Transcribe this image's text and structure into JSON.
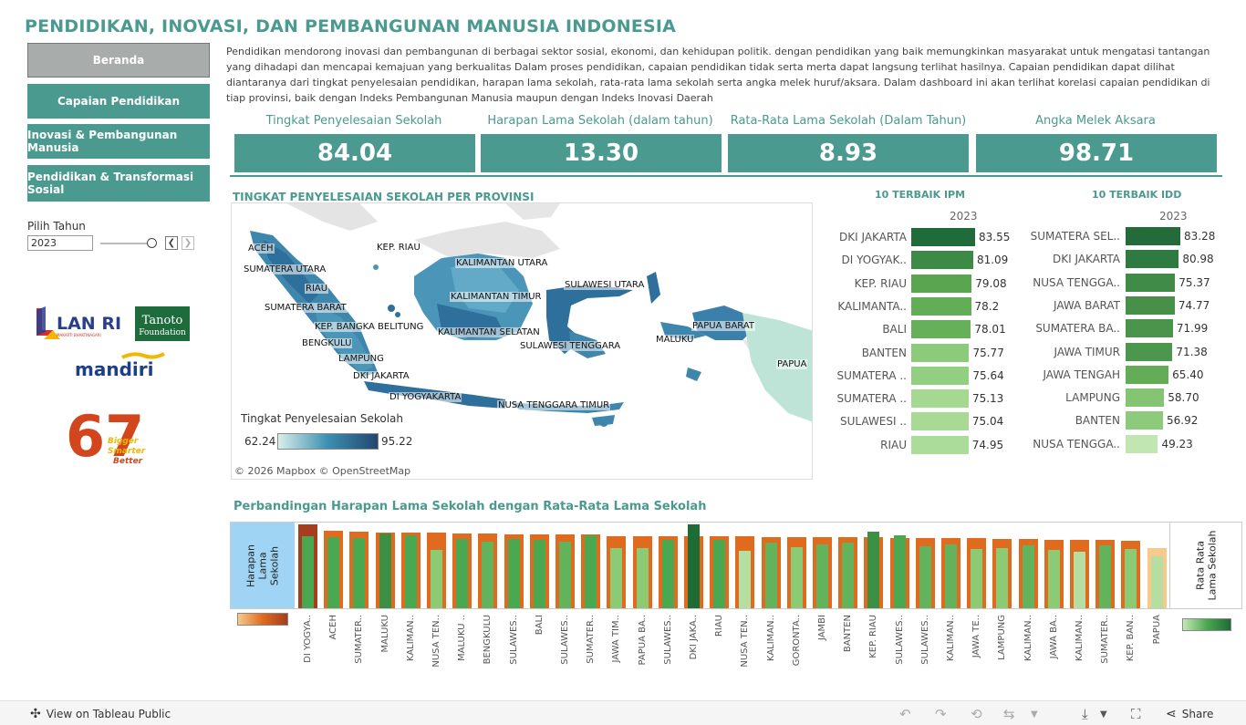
{
  "header": {
    "title": "PENDIDIKAN, INOVASI, DAN PEMBANGUNAN MANUSIA INDONESIA"
  },
  "nav": {
    "items": [
      {
        "label": "Beranda",
        "active": true
      },
      {
        "label": "Capaian Pendidikan",
        "active": false
      },
      {
        "label": "Inovasi & Pembangunan Manusia",
        "active": false
      },
      {
        "label": "Pendidikan & Transformasi Sosial",
        "active": false
      }
    ]
  },
  "filter": {
    "label": "Pilih Tahun",
    "value": "2023"
  },
  "intro": {
    "text": "Pendidikan mendorong inovasi dan pembangunan di berbagai sektor sosial, ekonomi, dan kehidupan politik. dengan pendidikan yang baik memungkinkan masyarakat untuk mengatasi tantangan yang dihadapi dan mencapai kemajuan yang berkualitas Dalam proses pendidikan, capaian pendidikan tidak serta merta dapat langsung terlihat hasilnya. Capaian pendidikan dapat dilihat diantaranya dari tingkat penyelesaian pendidikan, harapan lama sekolah, rata-rata lama sekolah serta angka melek huruf/aksara. Dalam dashboard ini akan terlihat korelasi capaian pendidikan di tiap provinsi, baik dengan Indeks Pembangunan Manusia maupun dengan Indeks Inovasi Daerah"
  },
  "kpis": [
    {
      "label": "Tingkat Penyelesaian Sekolah",
      "value": "84.04"
    },
    {
      "label": "Harapan Lama Sekolah (dalam tahun)",
      "value": "13.30"
    },
    {
      "label": "Rata-Rata Lama Sekolah (Dalam Tahun)",
      "value": "8.93"
    },
    {
      "label": "Angka Melek Aksara",
      "value": "98.71"
    }
  ],
  "map": {
    "title": "TINGKAT PENYELESAIAN SEKOLAH PER PROVINSI",
    "labels": [
      "ACEH",
      "KEP. RIAU",
      "KALIMANTAN UTARA",
      "SUMATERA UTARA",
      "RIAU",
      "KALIMANTAN TIMUR",
      "SULAWESI UTARA",
      "SUMATERA BARAT",
      "KEP. BANGKA BELITUNG",
      "KALIMANTAN SELATAN",
      "PAPUA BARAT",
      "BENGKULU",
      "SULAWESI TENGGARA",
      "MALUKU",
      "PAPUA",
      "LAMPUNG",
      "DKI JAKARTA",
      "DI YOGYAKARTA",
      "NUSA TENGGARA TIMUR"
    ],
    "legend_title": "Tingkat Penyelesaian Sekolah",
    "legend_min": "62.24",
    "legend_max": "95.22",
    "attribution": "© 2026 Mapbox  © OpenStreetMap"
  },
  "ipm": {
    "title": "10 TERBAIK IPM",
    "year": "2023",
    "rows": [
      {
        "name": "DKI JAKARTA",
        "value": 83.55,
        "label": "83.55",
        "color": "#1f6b3a"
      },
      {
        "name": "DI YOGYAK..",
        "value": 81.09,
        "label": "81.09",
        "color": "#3d8a46"
      },
      {
        "name": "KEP. RIAU",
        "value": 79.08,
        "label": "79.08",
        "color": "#5aa54f"
      },
      {
        "name": "KALIMANTA..",
        "value": 78.2,
        "label": "78.2",
        "color": "#62ad56"
      },
      {
        "name": "BALI",
        "value": 78.01,
        "label": "78.01",
        "color": "#65b058"
      },
      {
        "name": "BANTEN",
        "value": 75.77,
        "label": "75.77",
        "color": "#8ccb7a"
      },
      {
        "name": "SUMATERA ..",
        "value": 75.64,
        "label": "75.64",
        "color": "#93cf80"
      },
      {
        "name": "SUMATERA ..",
        "value": 75.13,
        "label": "75.13",
        "color": "#a5d891"
      },
      {
        "name": "SULAWESI ..",
        "value": 75.04,
        "label": "75.04",
        "color": "#a8da95"
      },
      {
        "name": "RIAU",
        "value": 74.95,
        "label": "74.95",
        "color": "#acdc99"
      }
    ]
  },
  "idd": {
    "title": "10 TERBAIK IDD",
    "year": "2023",
    "rows": [
      {
        "name": "SUMATERA SEL..",
        "value": 83.28,
        "label": "83.28",
        "color": "#246b3a"
      },
      {
        "name": "DKI JAKARTA",
        "value": 80.98,
        "label": "80.98",
        "color": "#2f7a40"
      },
      {
        "name": "NUSA TENGGA..",
        "value": 75.37,
        "label": "75.37",
        "color": "#3f8b47"
      },
      {
        "name": "JAWA BARAT",
        "value": 74.77,
        "label": "74.77",
        "color": "#46904a"
      },
      {
        "name": "SUMATERA BA..",
        "value": 71.99,
        "label": "71.99",
        "color": "#4a944c"
      },
      {
        "name": "JAWA TIMUR",
        "value": 71.38,
        "label": "71.38",
        "color": "#4c964d"
      },
      {
        "name": "JAWA TENGAH",
        "value": 65.4,
        "label": "65.40",
        "color": "#62ad56"
      },
      {
        "name": "LAMPUNG",
        "value": 58.7,
        "label": "58.70",
        "color": "#84c473"
      },
      {
        "name": "BANTEN",
        "value": 56.92,
        "label": "56.92",
        "color": "#8dca7b"
      },
      {
        "name": "NUSA TENGGA..",
        "value": 49.23,
        "label": "49.23",
        "color": "#c2e6b2"
      }
    ]
  },
  "chart_data": {
    "type": "bar",
    "title": "Perbandingan Harapan Lama Sekolah dengan Rata-Rata Lama Sekolah",
    "ylabel_left": "Harapan Lama Sekolah",
    "ylabel_right": "Rata Rata Lama Sekolah",
    "categories": [
      "DI YOGYA..",
      "ACEH",
      "SUMATER..",
      "MALUKU",
      "KALIMAN..",
      "NUSA TEN..",
      "MALUKU ..",
      "BENGKULU",
      "SULAWES..",
      "BALI",
      "SULAWES..",
      "SUMATER..",
      "JAWA TIM..",
      "PAPUA BA..",
      "SULAWES..",
      "DKI JAKA..",
      "RIAU",
      "NUSA TEN..",
      "KALIMAN..",
      "GORONTA..",
      "JAMBI",
      "BANTEN",
      "KEP. RIAU",
      "SULAWES..",
      "SULAWES..",
      "KALIMAN..",
      "JAWA TE..",
      "LAMPUNG",
      "KALIMAN..",
      "JAWA BA..",
      "KALIMAN..",
      "SUMATER..",
      "KEP. BAN..",
      "PAPUA"
    ],
    "series": [
      {
        "name": "Harapan Lama Sekolah",
        "values": [
          15.67,
          14.54,
          14.28,
          14.16,
          14.13,
          14.1,
          13.93,
          13.93,
          13.87,
          13.85,
          13.8,
          13.73,
          13.53,
          13.52,
          13.49,
          13.42,
          13.42,
          13.4,
          13.34,
          13.32,
          13.3,
          13.3,
          13.21,
          13.18,
          13.09,
          13.08,
          13.06,
          12.95,
          12.93,
          12.81,
          12.8,
          12.78,
          12.64,
          11.26
        ]
      },
      {
        "name": "Rata Rata Lama Sekolah",
        "values": [
          9.82,
          9.66,
          9.55,
          10.2,
          9.93,
          7.97,
          9.47,
          9.09,
          9.4,
          9.39,
          9.03,
          10.0,
          8.2,
          8.23,
          9.34,
          11.45,
          9.32,
          7.82,
          8.99,
          8.34,
          8.73,
          9.0,
          10.41,
          10.0,
          8.52,
          8.7,
          8.03,
          8.27,
          8.6,
          8.0,
          7.66,
          8.55,
          8.09,
          7.15
        ]
      }
    ]
  },
  "footer": {
    "link": "View on Tableau Public",
    "share": "Share"
  }
}
